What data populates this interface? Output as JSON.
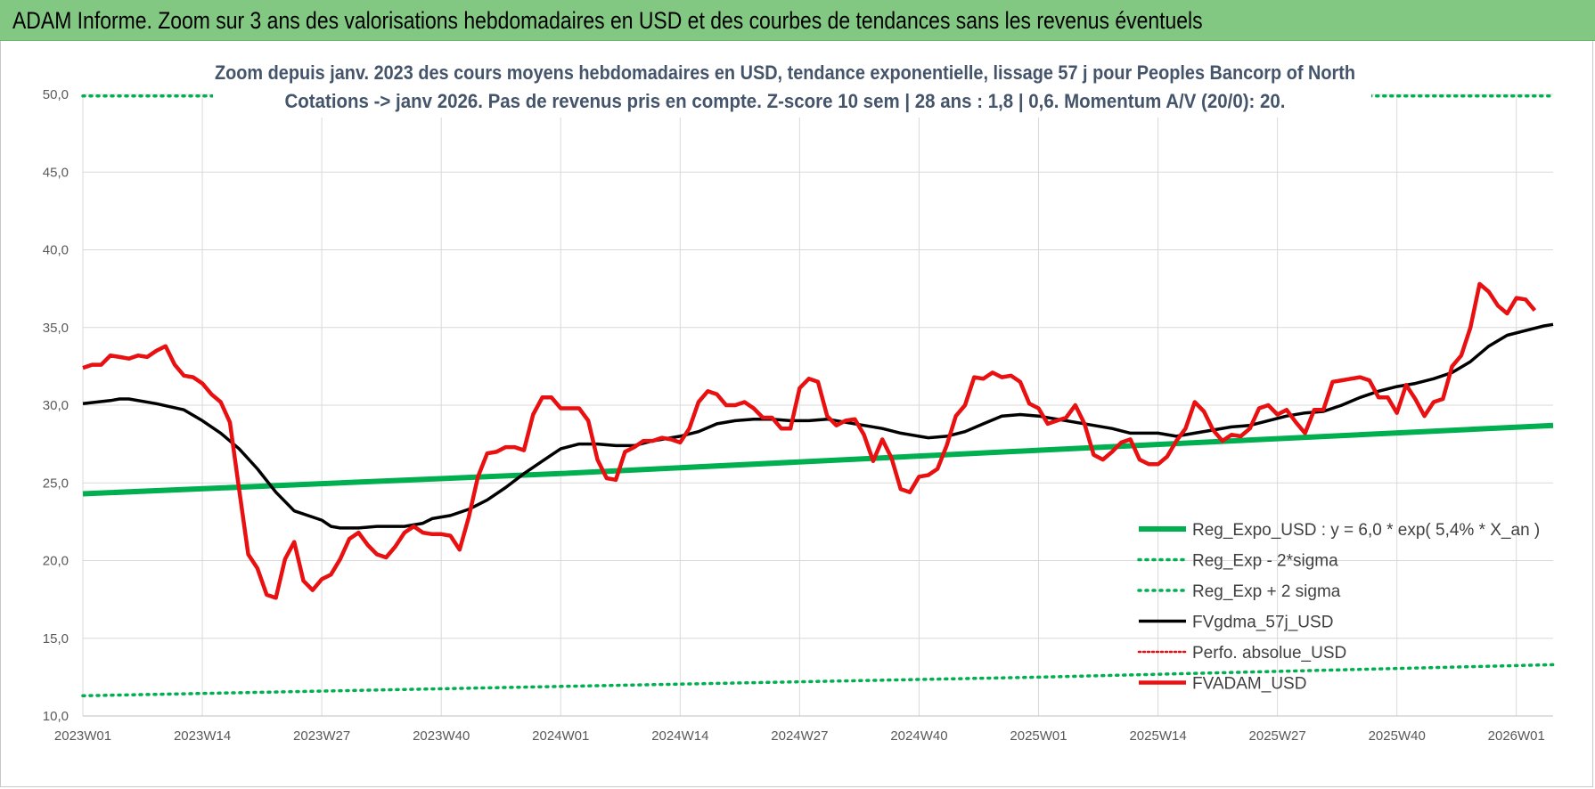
{
  "header": {
    "title": "ADAM Informe. Zoom sur 3 ans des valorisations hebdomadaires en USD et des courbes de tendances sans les revenus éventuels"
  },
  "colors": {
    "banner": "#82c882",
    "regression": "#00b050",
    "fvgdma": "#000000",
    "fvadam": "#e81010",
    "perfo": "#e81010",
    "grid": "#d9d9d9"
  },
  "chart_data": {
    "type": "line",
    "title": [
      "Zoom depuis janv. 2023 des cours moyens hebdomadaires en USD, tendance exponentielle, lissage 57 j pour Peoples Bancorp of North",
      "Cotations -> janv 2026. Pas de revenus pris en compte. Z-score 10 sem  | 28 ans : 1,8 | 0,6. Momentum A/V (20/0): 20."
    ],
    "ylim": [
      10,
      50
    ],
    "y_ticks": [
      "10,0",
      "15,0",
      "20,0",
      "25,0",
      "30,0",
      "35,0",
      "40,0",
      "45,0",
      "50,0"
    ],
    "x_ticks": [
      {
        "label": "2023W01",
        "x": 0
      },
      {
        "label": "2023W14",
        "x": 13
      },
      {
        "label": "2023W27",
        "x": 26
      },
      {
        "label": "2023W40",
        "x": 39
      },
      {
        "label": "2024W01",
        "x": 52
      },
      {
        "label": "2024W14",
        "x": 65
      },
      {
        "label": "2024W27",
        "x": 78
      },
      {
        "label": "2024W40",
        "x": 91
      },
      {
        "label": "2025W01",
        "x": 104
      },
      {
        "label": "2025W14",
        "x": 117
      },
      {
        "label": "2025W27",
        "x": 130
      },
      {
        "label": "2025W40",
        "x": 143
      },
      {
        "label": "2026W01",
        "x": 156
      }
    ],
    "x_max": 160,
    "grid": true,
    "legend_position": "bottom-right",
    "series": [
      {
        "name": "Reg_Expo_USD : y = 6,0 * exp( 5,4% *  X_an )",
        "style": "solid-thick",
        "points": [
          [
            0,
            24.3
          ],
          [
            52,
            25.6
          ],
          [
            104,
            27.1
          ],
          [
            160,
            28.7
          ]
        ]
      },
      {
        "name": "Reg_Exp - 2*sigma",
        "style": "dotted",
        "points": [
          [
            0,
            11.3
          ],
          [
            52,
            11.9
          ],
          [
            104,
            12.5
          ],
          [
            160,
            13.3
          ]
        ]
      },
      {
        "name": "Reg_Exp + 2 sigma",
        "style": "dotted",
        "points": [
          [
            0,
            49.9
          ],
          [
            15,
            49.9
          ],
          [
            140,
            49.9
          ],
          [
            160,
            49.9
          ]
        ]
      },
      {
        "name": "FVgdma_57j_USD",
        "style": "solid",
        "points": [
          [
            0,
            30.1
          ],
          [
            3,
            30.3
          ],
          [
            4,
            30.4
          ],
          [
            5,
            30.4
          ],
          [
            8,
            30.1
          ],
          [
            11,
            29.7
          ],
          [
            13,
            29.0
          ],
          [
            15,
            28.2
          ],
          [
            17,
            27.2
          ],
          [
            19,
            25.9
          ],
          [
            21,
            24.4
          ],
          [
            23,
            23.2
          ],
          [
            25,
            22.8
          ],
          [
            26,
            22.6
          ],
          [
            27,
            22.2
          ],
          [
            28,
            22.1
          ],
          [
            30,
            22.1
          ],
          [
            32,
            22.2
          ],
          [
            35,
            22.2
          ],
          [
            37,
            22.4
          ],
          [
            38,
            22.7
          ],
          [
            40,
            22.9
          ],
          [
            42,
            23.3
          ],
          [
            44,
            23.9
          ],
          [
            46,
            24.7
          ],
          [
            48,
            25.6
          ],
          [
            50,
            26.4
          ],
          [
            52,
            27.2
          ],
          [
            54,
            27.5
          ],
          [
            56,
            27.5
          ],
          [
            58,
            27.4
          ],
          [
            60,
            27.4
          ],
          [
            62,
            27.7
          ],
          [
            65,
            28.0
          ],
          [
            67,
            28.3
          ],
          [
            69,
            28.8
          ],
          [
            71,
            29.0
          ],
          [
            73,
            29.1
          ],
          [
            75,
            29.1
          ],
          [
            77,
            29.0
          ],
          [
            79,
            29.0
          ],
          [
            81,
            29.1
          ],
          [
            83,
            28.9
          ],
          [
            85,
            28.7
          ],
          [
            87,
            28.5
          ],
          [
            89,
            28.2
          ],
          [
            91,
            28.0
          ],
          [
            92,
            27.9
          ],
          [
            94,
            28.0
          ],
          [
            96,
            28.3
          ],
          [
            98,
            28.8
          ],
          [
            100,
            29.3
          ],
          [
            102,
            29.4
          ],
          [
            104,
            29.3
          ],
          [
            106,
            29.1
          ],
          [
            108,
            28.9
          ],
          [
            110,
            28.7
          ],
          [
            112,
            28.5
          ],
          [
            114,
            28.2
          ],
          [
            117,
            28.2
          ],
          [
            119,
            28.0
          ],
          [
            121,
            28.2
          ],
          [
            123,
            28.4
          ],
          [
            125,
            28.6
          ],
          [
            127,
            28.7
          ],
          [
            129,
            29.0
          ],
          [
            131,
            29.3
          ],
          [
            133,
            29.5
          ],
          [
            135,
            29.6
          ],
          [
            137,
            30.0
          ],
          [
            139,
            30.5
          ],
          [
            141,
            30.9
          ],
          [
            143,
            31.2
          ],
          [
            145,
            31.4
          ],
          [
            147,
            31.7
          ],
          [
            149,
            32.1
          ],
          [
            151,
            32.8
          ],
          [
            153,
            33.8
          ],
          [
            155,
            34.5
          ],
          [
            157,
            34.8
          ],
          [
            159,
            35.1
          ],
          [
            160,
            35.2
          ]
        ]
      },
      {
        "name": "Perfo. absolue_USD",
        "style": "dotted",
        "points": []
      },
      {
        "name": "FVADAM_USD",
        "style": "solid-thick",
        "points": [
          [
            0,
            32.4
          ],
          [
            1,
            32.6
          ],
          [
            2,
            32.6
          ],
          [
            3,
            33.2
          ],
          [
            4,
            33.1
          ],
          [
            5,
            33.0
          ],
          [
            6,
            33.2
          ],
          [
            7,
            33.1
          ],
          [
            8,
            33.5
          ],
          [
            9,
            33.8
          ],
          [
            10,
            32.6
          ],
          [
            11,
            31.9
          ],
          [
            12,
            31.8
          ],
          [
            13,
            31.4
          ],
          [
            14,
            30.7
          ],
          [
            15,
            30.2
          ],
          [
            16,
            28.9
          ],
          [
            17,
            24.6
          ],
          [
            18,
            20.4
          ],
          [
            19,
            19.5
          ],
          [
            20,
            17.8
          ],
          [
            21,
            17.6
          ],
          [
            22,
            20.1
          ],
          [
            23,
            21.2
          ],
          [
            24,
            18.7
          ],
          [
            25,
            18.1
          ],
          [
            26,
            18.8
          ],
          [
            27,
            19.1
          ],
          [
            28,
            20.1
          ],
          [
            29,
            21.4
          ],
          [
            30,
            21.8
          ],
          [
            31,
            21.0
          ],
          [
            32,
            20.4
          ],
          [
            33,
            20.2
          ],
          [
            34,
            20.9
          ],
          [
            35,
            21.8
          ],
          [
            36,
            22.2
          ],
          [
            37,
            21.8
          ],
          [
            38,
            21.7
          ],
          [
            39,
            21.7
          ],
          [
            40,
            21.6
          ],
          [
            41,
            20.7
          ],
          [
            42,
            22.8
          ],
          [
            43,
            25.4
          ],
          [
            44,
            26.9
          ],
          [
            45,
            27.0
          ],
          [
            46,
            27.3
          ],
          [
            47,
            27.3
          ],
          [
            48,
            27.1
          ],
          [
            49,
            29.4
          ],
          [
            50,
            30.5
          ],
          [
            51,
            30.5
          ],
          [
            52,
            29.8
          ],
          [
            53,
            29.8
          ],
          [
            54,
            29.8
          ],
          [
            55,
            29.0
          ],
          [
            56,
            26.5
          ],
          [
            57,
            25.3
          ],
          [
            58,
            25.2
          ],
          [
            59,
            27.0
          ],
          [
            60,
            27.3
          ],
          [
            61,
            27.7
          ],
          [
            62,
            27.7
          ],
          [
            63,
            27.9
          ],
          [
            64,
            27.8
          ],
          [
            65,
            27.6
          ],
          [
            66,
            28.5
          ],
          [
            67,
            30.2
          ],
          [
            68,
            30.9
          ],
          [
            69,
            30.7
          ],
          [
            70,
            30.0
          ],
          [
            71,
            30.0
          ],
          [
            72,
            30.2
          ],
          [
            73,
            29.8
          ],
          [
            74,
            29.2
          ],
          [
            75,
            29.2
          ],
          [
            76,
            28.5
          ],
          [
            77,
            28.5
          ],
          [
            78,
            31.1
          ],
          [
            79,
            31.7
          ],
          [
            80,
            31.5
          ],
          [
            81,
            29.3
          ],
          [
            82,
            28.7
          ],
          [
            83,
            29.0
          ],
          [
            84,
            29.1
          ],
          [
            85,
            28.1
          ],
          [
            86,
            26.4
          ],
          [
            87,
            27.8
          ],
          [
            88,
            26.6
          ],
          [
            89,
            24.6
          ],
          [
            90,
            24.4
          ],
          [
            91,
            25.4
          ],
          [
            92,
            25.5
          ],
          [
            93,
            25.9
          ],
          [
            94,
            27.4
          ],
          [
            95,
            29.3
          ],
          [
            96,
            30.0
          ],
          [
            97,
            31.8
          ],
          [
            98,
            31.7
          ],
          [
            99,
            32.1
          ],
          [
            100,
            31.8
          ],
          [
            101,
            31.9
          ],
          [
            102,
            31.5
          ],
          [
            103,
            30.1
          ],
          [
            104,
            29.8
          ],
          [
            105,
            28.8
          ],
          [
            106,
            29.0
          ],
          [
            107,
            29.2
          ],
          [
            108,
            30.0
          ],
          [
            109,
            28.8
          ],
          [
            110,
            26.8
          ],
          [
            111,
            26.5
          ],
          [
            112,
            27.0
          ],
          [
            113,
            27.6
          ],
          [
            114,
            27.8
          ],
          [
            115,
            26.5
          ],
          [
            116,
            26.2
          ],
          [
            117,
            26.2
          ],
          [
            118,
            26.7
          ],
          [
            119,
            27.7
          ],
          [
            120,
            28.5
          ],
          [
            121,
            30.2
          ],
          [
            122,
            29.6
          ],
          [
            123,
            28.4
          ],
          [
            124,
            27.7
          ],
          [
            125,
            28.1
          ],
          [
            126,
            28.0
          ],
          [
            127,
            28.5
          ],
          [
            128,
            29.8
          ],
          [
            129,
            30.0
          ],
          [
            130,
            29.4
          ],
          [
            131,
            29.7
          ],
          [
            132,
            28.9
          ],
          [
            133,
            28.2
          ],
          [
            134,
            29.7
          ],
          [
            135,
            29.7
          ],
          [
            136,
            31.5
          ],
          [
            137,
            31.6
          ],
          [
            138,
            31.7
          ],
          [
            139,
            31.8
          ],
          [
            140,
            31.6
          ],
          [
            141,
            30.5
          ],
          [
            142,
            30.5
          ],
          [
            143,
            29.5
          ],
          [
            144,
            31.3
          ],
          [
            145,
            30.4
          ],
          [
            146,
            29.3
          ],
          [
            147,
            30.2
          ],
          [
            148,
            30.4
          ],
          [
            149,
            32.5
          ],
          [
            150,
            33.2
          ],
          [
            151,
            35.0
          ],
          [
            152,
            37.8
          ],
          [
            153,
            37.3
          ],
          [
            154,
            36.4
          ],
          [
            155,
            35.9
          ],
          [
            156,
            36.9
          ],
          [
            157,
            36.8
          ],
          [
            158,
            36.1
          ]
        ]
      }
    ]
  }
}
